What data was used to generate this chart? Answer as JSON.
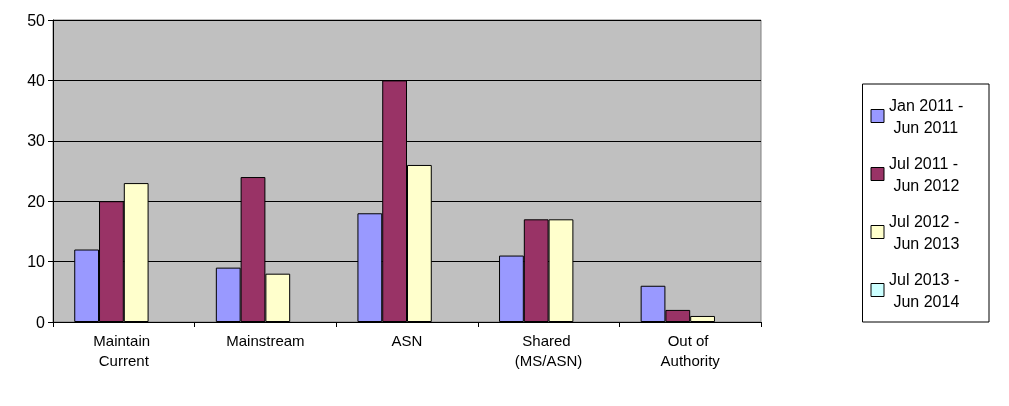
{
  "chart_data": {
    "type": "bar",
    "categories": [
      "Maintain Current",
      "Mainstream",
      "ASN",
      "Shared (MS/ASN)",
      "Out of Authority"
    ],
    "series": [
      {
        "name": "Jan 2011 - Jun 2011",
        "color": "#9999ff",
        "values": [
          12,
          9,
          18,
          11,
          6
        ]
      },
      {
        "name": "Jul 2011 - Jun 2012",
        "color": "#993366",
        "values": [
          20,
          24,
          40,
          17,
          2
        ]
      },
      {
        "name": "Jul 2012 - Jun 2013",
        "color": "#ffffcc",
        "values": [
          23,
          8,
          26,
          17,
          1
        ]
      },
      {
        "name": "Jul 2013 - Jun 2014",
        "color": "#ccffff",
        "values": [
          null,
          null,
          null,
          null,
          null
        ]
      }
    ],
    "ylim": [
      0,
      50
    ],
    "yticks": [
      0,
      10,
      20,
      30,
      40,
      50
    ],
    "grid": "y",
    "legend": "right"
  }
}
